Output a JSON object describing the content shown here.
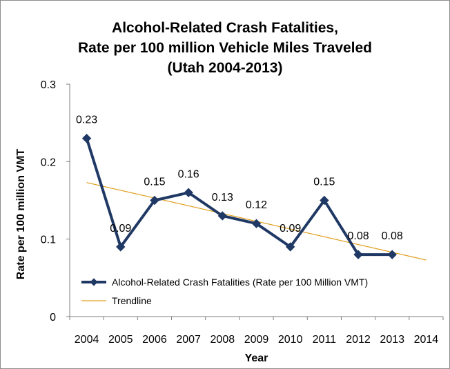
{
  "chart_data": {
    "type": "line",
    "title_lines": [
      "Alcohol-Related Crash Fatalities,",
      "Rate per 100 million Vehicle Miles Traveled",
      "(Utah 2004-2013)"
    ],
    "xlabel": "Year",
    "ylabel": "Rate per 100 million VMT",
    "x_ticks": [
      "2004",
      "2005",
      "2006",
      "2007",
      "2008",
      "2009",
      "2010",
      "2011",
      "2012",
      "2013",
      "2014"
    ],
    "y_ticks": [
      "0",
      "0.1",
      "0.2",
      "0.3"
    ],
    "ylim": [
      0,
      0.3
    ],
    "grid": false,
    "series": [
      {
        "name": "Alcohol-Related Crash Fatalities (Rate per 100 Million VMT)",
        "color": "#1f3864",
        "x": [
          2004,
          2005,
          2006,
          2007,
          2008,
          2009,
          2010,
          2011,
          2012,
          2013
        ],
        "values": [
          0.23,
          0.09,
          0.15,
          0.16,
          0.13,
          0.12,
          0.09,
          0.15,
          0.08,
          0.08
        ],
        "labels": [
          "0.23",
          "0.09",
          "0.15",
          "0.16",
          "0.13",
          "0.12",
          "0.09",
          "0.15",
          "0.08",
          "0.08"
        ]
      },
      {
        "name": "Trendline",
        "color": "#e0a020",
        "x": [
          2004,
          2014
        ],
        "values": [
          0.173,
          0.073
        ]
      }
    ],
    "legend_position": "bottom-left-inside"
  }
}
